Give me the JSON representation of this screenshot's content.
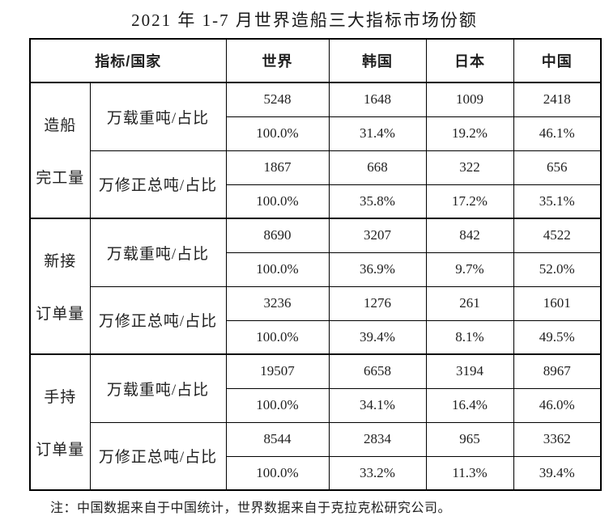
{
  "title": "2021 年 1-7 月世界造船三大指标市场份额",
  "table": {
    "header": {
      "indicator_country": "指标/国家",
      "columns": [
        "世界",
        "韩国",
        "日本",
        "中国"
      ]
    },
    "groups": [
      {
        "category": "造船完工量",
        "category_lines": [
          "造船",
          "完工量"
        ],
        "metrics": [
          {
            "label": "万载重吨/占比",
            "values": [
              "5248",
              "1648",
              "1009",
              "2418"
            ],
            "shares": [
              "100.0%",
              "31.4%",
              "19.2%",
              "46.1%"
            ]
          },
          {
            "label": "万修正总吨/占比",
            "values": [
              "1867",
              "668",
              "322",
              "656"
            ],
            "shares": [
              "100.0%",
              "35.8%",
              "17.2%",
              "35.1%"
            ]
          }
        ]
      },
      {
        "category": "新接订单量",
        "category_lines": [
          "新接",
          "订单量"
        ],
        "metrics": [
          {
            "label": "万载重吨/占比",
            "values": [
              "8690",
              "3207",
              "842",
              "4522"
            ],
            "shares": [
              "100.0%",
              "36.9%",
              "9.7%",
              "52.0%"
            ]
          },
          {
            "label": "万修正总吨/占比",
            "values": [
              "3236",
              "1276",
              "261",
              "1601"
            ],
            "shares": [
              "100.0%",
              "39.4%",
              "8.1%",
              "49.5%"
            ]
          }
        ]
      },
      {
        "category": "手持订单量",
        "category_lines": [
          "手持",
          "订单量"
        ],
        "metrics": [
          {
            "label": "万载重吨/占比",
            "values": [
              "19507",
              "6658",
              "3194",
              "8967"
            ],
            "shares": [
              "100.0%",
              "34.1%",
              "16.4%",
              "46.0%"
            ]
          },
          {
            "label": "万修正总吨/占比",
            "values": [
              "8544",
              "2834",
              "965",
              "3362"
            ],
            "shares": [
              "100.0%",
              "33.2%",
              "11.3%",
              "39.4%"
            ]
          }
        ]
      }
    ]
  },
  "note": "注：中国数据来自于中国统计，世界数据来自于克拉克松研究公司。"
}
